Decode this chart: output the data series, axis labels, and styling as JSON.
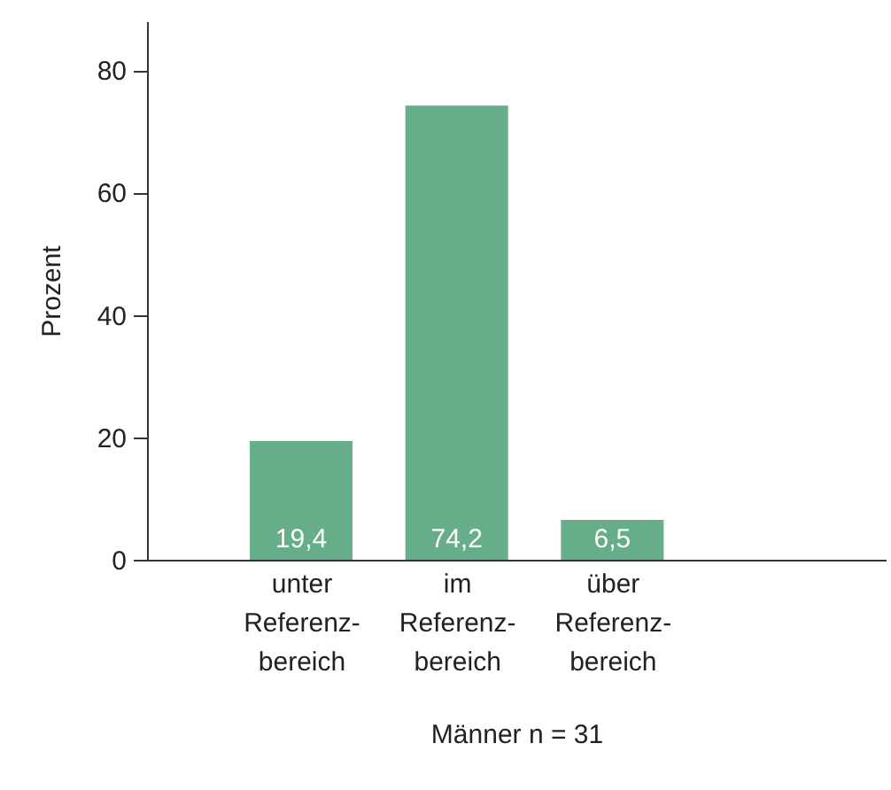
{
  "chart_data": {
    "type": "bar",
    "categories": [
      "unter\nReferenz-\nbereich",
      "im\nReferenz-\nbereich",
      "über\nReferenz-\nbereich"
    ],
    "values": [
      19.4,
      74.2,
      6.5
    ],
    "value_labels": [
      "19,4",
      "74,2",
      "6,5"
    ],
    "color": "#66ad8a",
    "ylim": [
      0,
      88
    ],
    "yticks": [
      0,
      20,
      40,
      60,
      80
    ],
    "ylabel": "Prozent",
    "xlabel": "Männer n = 31",
    "grid": false
  }
}
